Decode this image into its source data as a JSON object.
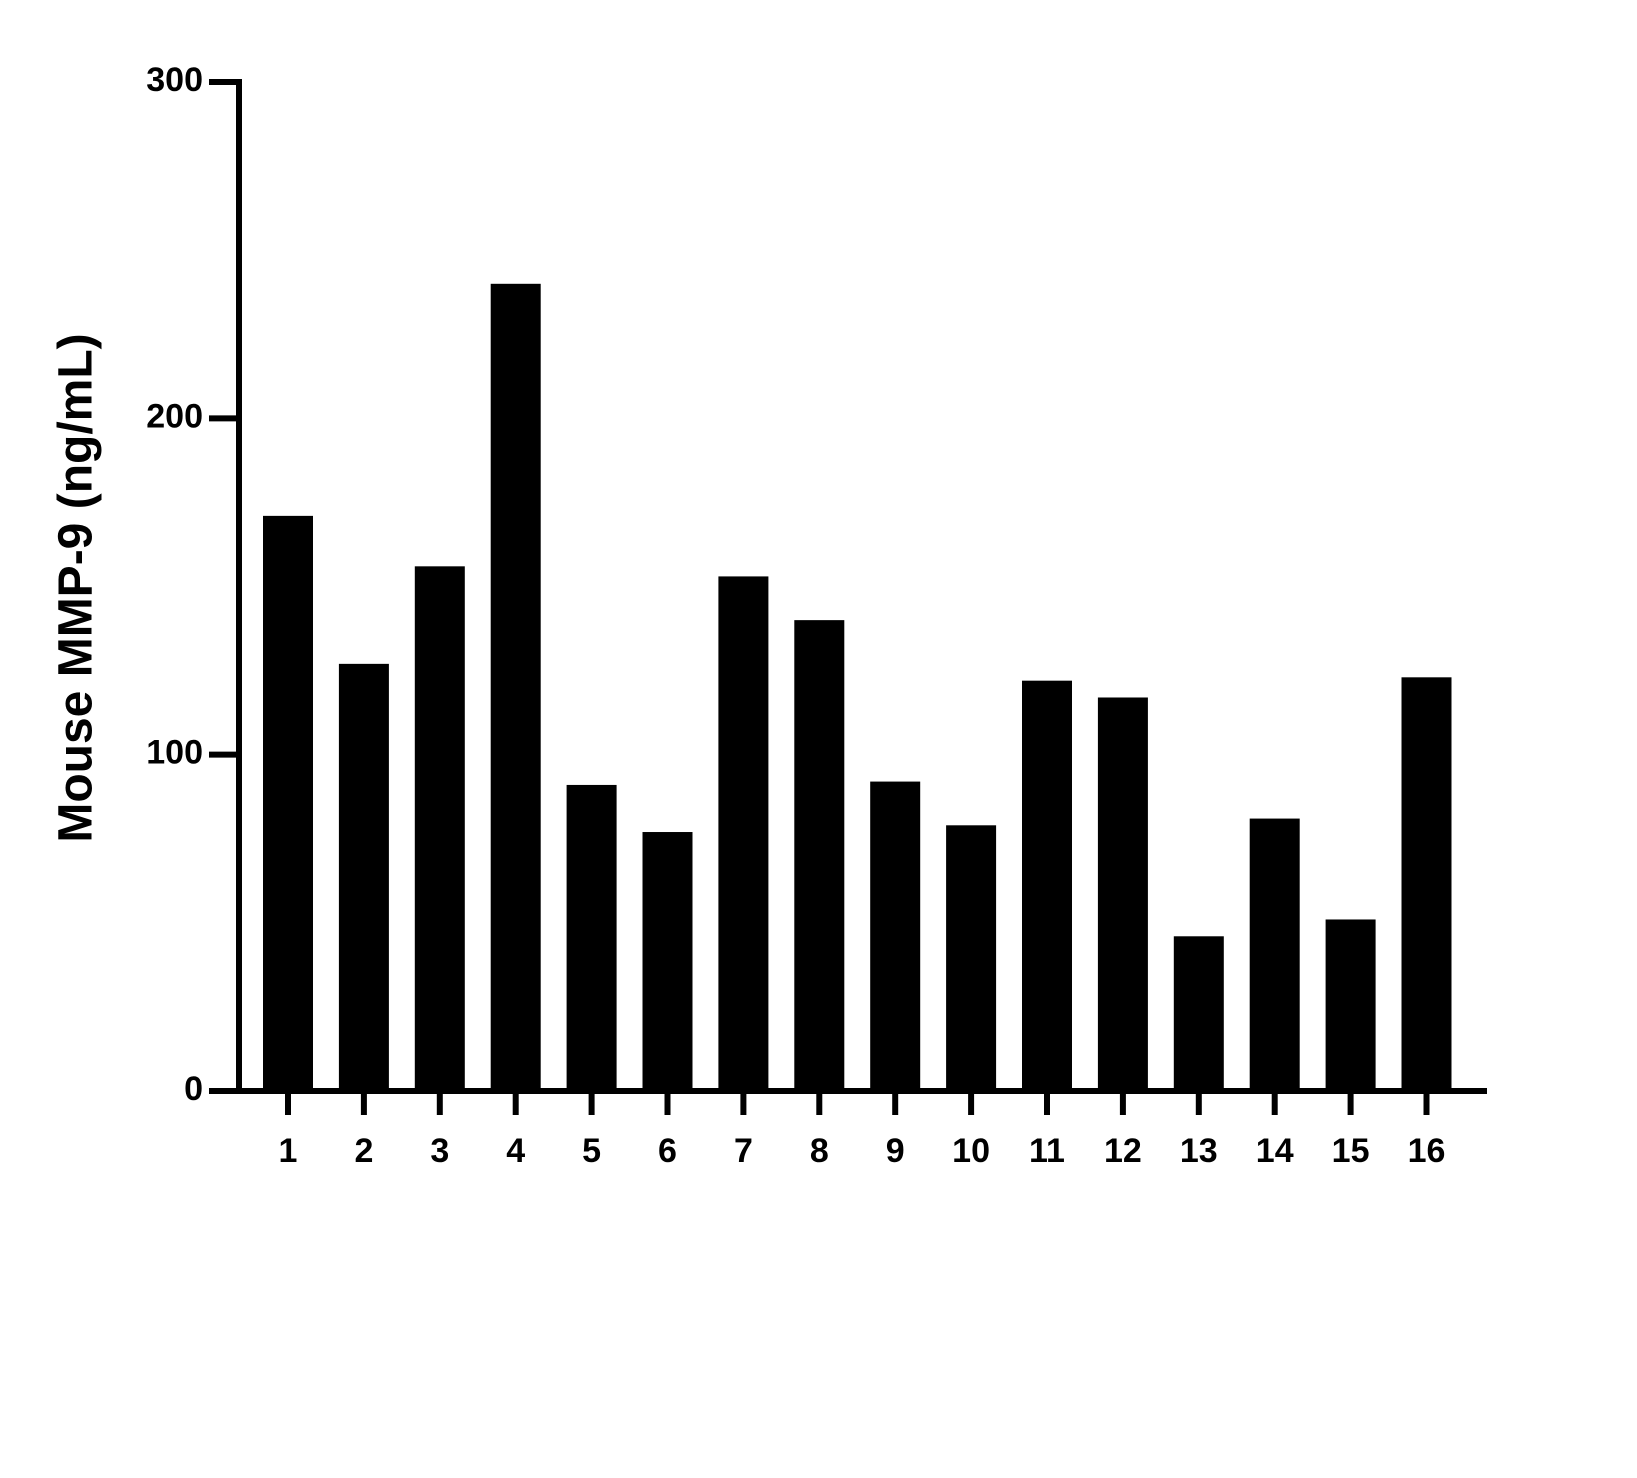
{
  "chart_data": {
    "type": "bar",
    "y_label": "Mouse MMP-9 (ng/mL)",
    "categories": [
      "1",
      "2",
      "3",
      "4",
      "5",
      "6",
      "7",
      "8",
      "9",
      "10",
      "11",
      "12",
      "13",
      "14",
      "15",
      "16"
    ],
    "values": [
      171,
      127,
      156,
      240,
      91,
      77,
      153,
      140,
      92,
      79,
      122,
      117,
      46,
      81,
      51,
      123
    ],
    "color": "#000000",
    "ylim": [
      0,
      300
    ],
    "yticks": [
      0,
      100,
      200,
      300
    ],
    "grid": false
  }
}
